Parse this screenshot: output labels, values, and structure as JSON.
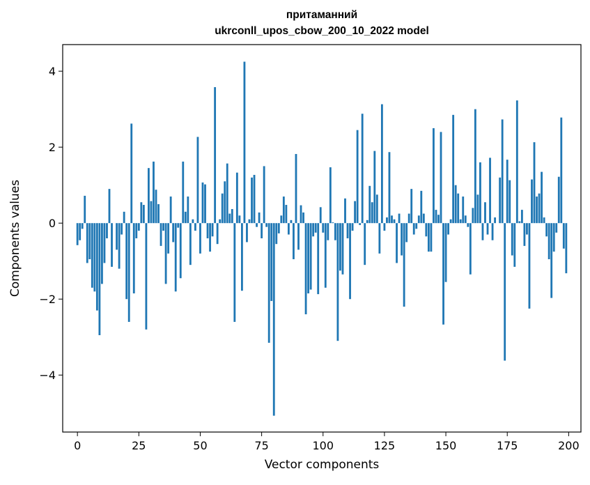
{
  "chart_data": {
    "type": "bar",
    "title_line1": "притаманний",
    "title_line2": "ukrconll_upos_cbow_200_10_2022 model",
    "xlabel": "Vector components",
    "ylabel": "Components values",
    "xlim": [
      -6,
      205
    ],
    "ylim": [
      -5.5,
      4.7
    ],
    "x_ticks": [
      0,
      25,
      50,
      75,
      100,
      125,
      150,
      175,
      200
    ],
    "x_tick_labels": [
      "0",
      "25",
      "50",
      "75",
      "100",
      "125",
      "150",
      "175",
      "200"
    ],
    "y_ticks": [
      -4,
      -2,
      0,
      2,
      4
    ],
    "y_tick_labels": [
      "−4",
      "−2",
      "0",
      "2",
      "4"
    ],
    "bar_color": "#1f77b4",
    "grid": false,
    "values": [
      -0.58,
      -0.45,
      -0.15,
      0.72,
      -1.05,
      -0.95,
      -1.7,
      -1.8,
      -2.3,
      -2.95,
      -1.6,
      -1.05,
      -0.4,
      0.9,
      -1.15,
      0.0,
      -0.7,
      -1.2,
      -0.3,
      0.3,
      -2.0,
      -2.6,
      2.62,
      -1.85,
      -0.4,
      -0.2,
      0.55,
      0.48,
      -2.8,
      1.45,
      0.58,
      1.62,
      0.88,
      0.5,
      -0.6,
      -0.2,
      -1.6,
      -0.8,
      0.7,
      -0.5,
      -1.8,
      -0.12,
      -1.45,
      1.62,
      0.3,
      0.7,
      -1.1,
      0.1,
      -0.2,
      2.27,
      -0.8,
      1.07,
      1.02,
      -0.4,
      -0.75,
      -0.35,
      3.58,
      -0.55,
      0.1,
      0.78,
      1.1,
      1.57,
      0.25,
      0.37,
      -2.6,
      1.33,
      0.2,
      -1.78,
      4.25,
      -0.5,
      0.1,
      1.2,
      1.27,
      -0.1,
      0.28,
      -0.4,
      1.5,
      -0.1,
      -3.15,
      -2.05,
      -5.07,
      -0.55,
      -0.27,
      0.2,
      0.7,
      0.48,
      -0.3,
      0.08,
      -0.95,
      1.82,
      -0.7,
      0.47,
      0.28,
      -2.4,
      -1.85,
      -1.75,
      -0.35,
      -0.25,
      -1.87,
      0.42,
      -0.25,
      -1.7,
      -0.45,
      1.47,
      0.02,
      -0.45,
      -3.1,
      -1.25,
      -1.35,
      0.65,
      -0.4,
      -2.0,
      -0.2,
      0.58,
      2.45,
      -0.05,
      2.88,
      -1.1,
      0.08,
      0.98,
      0.55,
      1.9,
      0.75,
      -0.8,
      3.13,
      -0.2,
      0.15,
      1.87,
      0.2,
      0.1,
      -1.05,
      0.25,
      -0.85,
      -2.2,
      -0.5,
      0.25,
      0.9,
      -0.3,
      -0.15,
      0.2,
      0.85,
      0.25,
      -0.35,
      -0.75,
      -0.75,
      2.5,
      0.35,
      0.22,
      2.4,
      -2.67,
      -1.55,
      -0.3,
      0.1,
      2.85,
      1.0,
      0.78,
      0.1,
      0.7,
      0.2,
      -0.1,
      -1.35,
      0.4,
      3.0,
      0.75,
      1.6,
      -0.45,
      0.55,
      -0.3,
      1.72,
      -0.45,
      0.15,
      0.0,
      1.2,
      2.73,
      -3.62,
      1.67,
      1.13,
      -0.85,
      -1.15,
      3.23,
      0.05,
      0.35,
      -0.6,
      -0.3,
      -2.25,
      1.15,
      2.13,
      0.7,
      0.78,
      1.35,
      0.15,
      -0.35,
      -0.95,
      -1.97,
      -0.75,
      -0.25,
      1.22,
      2.78,
      -0.67,
      -1.32
    ]
  }
}
